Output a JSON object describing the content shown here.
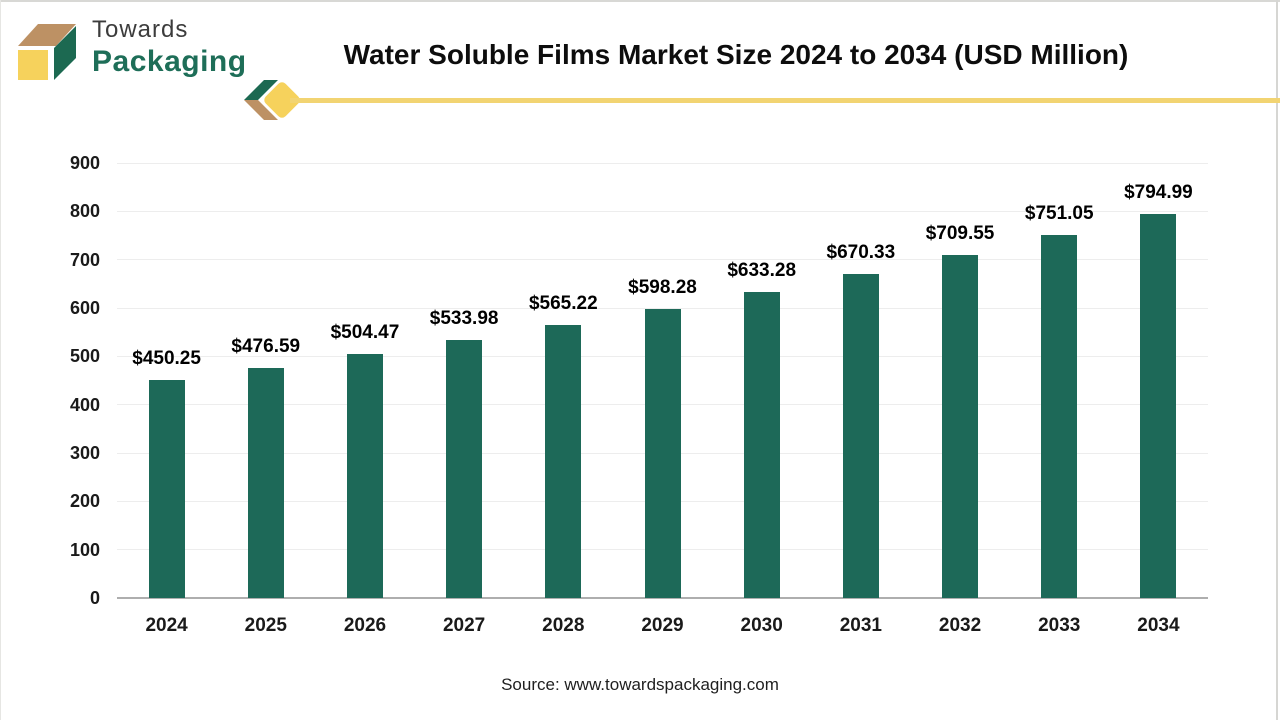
{
  "window": {
    "frame_color": "#d8d8d5"
  },
  "brand": {
    "line1": "Towards",
    "line2": "Packaging",
    "colors": {
      "box_top": "#BD9164",
      "box_side": "#1C6951",
      "box_front": "#F6D25C",
      "line1_text": "#3C3C3C",
      "line2_text": "#1E6E58"
    }
  },
  "header": {
    "title": "Water Soluble Films Market Size 2024 to 2034 (USD Million)",
    "accent_color": "#F2D472"
  },
  "chart_data": {
    "type": "bar",
    "title": "Water Soluble Films Market Size 2024 to 2034 (USD Million)",
    "categories": [
      "2024",
      "2025",
      "2026",
      "2027",
      "2028",
      "2029",
      "2030",
      "2031",
      "2032",
      "2033",
      "2034"
    ],
    "values": [
      450.25,
      476.59,
      504.47,
      533.98,
      565.22,
      598.28,
      633.28,
      670.33,
      709.55,
      751.05,
      794.99
    ],
    "value_labels": [
      "$450.25",
      "$476.59",
      "$504.47",
      "$533.98",
      "$565.22",
      "$598.28",
      "$633.28",
      "$670.33",
      "$709.55",
      "$751.05",
      "$794.99"
    ],
    "xlabel": "",
    "ylabel": "",
    "ylim": [
      0,
      900
    ],
    "yticks": [
      0,
      100,
      200,
      300,
      400,
      500,
      600,
      700,
      800,
      900
    ],
    "grid": true,
    "legend": "none",
    "bar_color": "#1D6958",
    "gridline_color": "#EDEDED",
    "baseline_color": "#AEAEAE"
  },
  "footer": {
    "source": "Source: www.towardspackaging.com"
  }
}
